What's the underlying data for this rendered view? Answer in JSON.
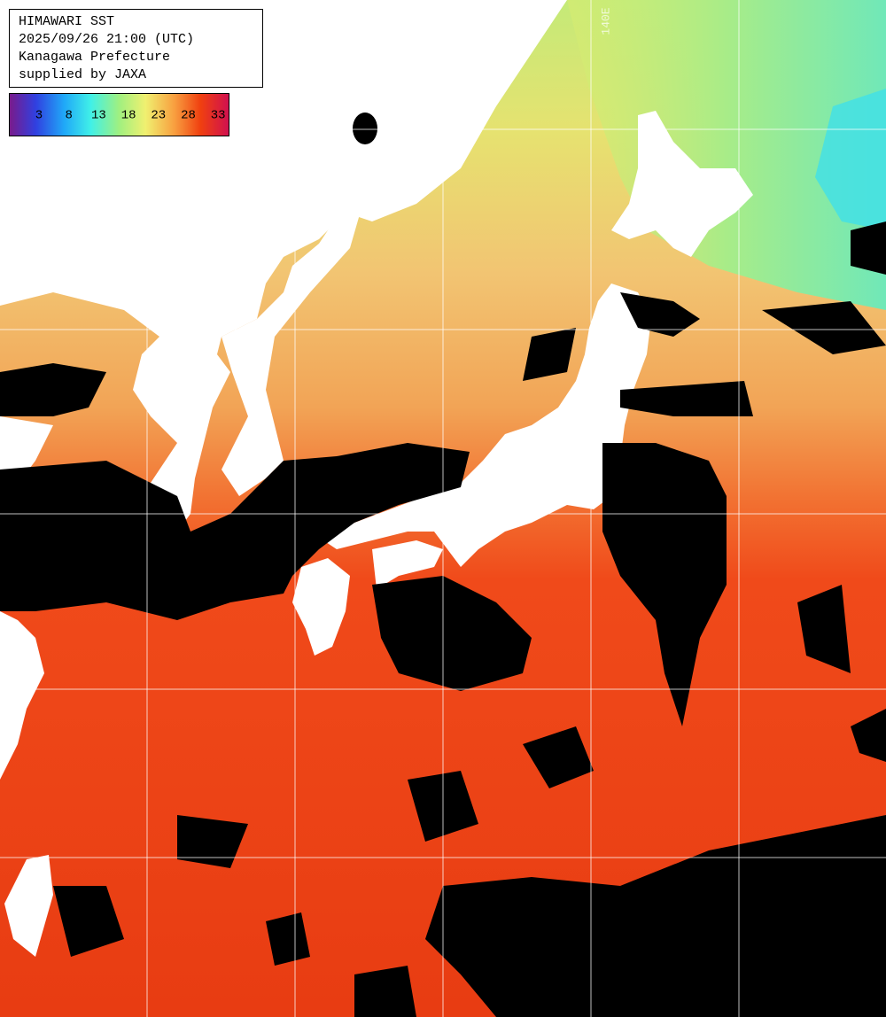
{
  "header": {
    "lines": [
      "HIMAWARI SST",
      "2025/09/26 21:00 (UTC)",
      "Kanagawa Prefecture",
      "supplied by JAXA"
    ]
  },
  "legend": {
    "labels": [
      3,
      8,
      13,
      18,
      23,
      28,
      33
    ]
  },
  "grid": {
    "label": "140E"
  }
}
